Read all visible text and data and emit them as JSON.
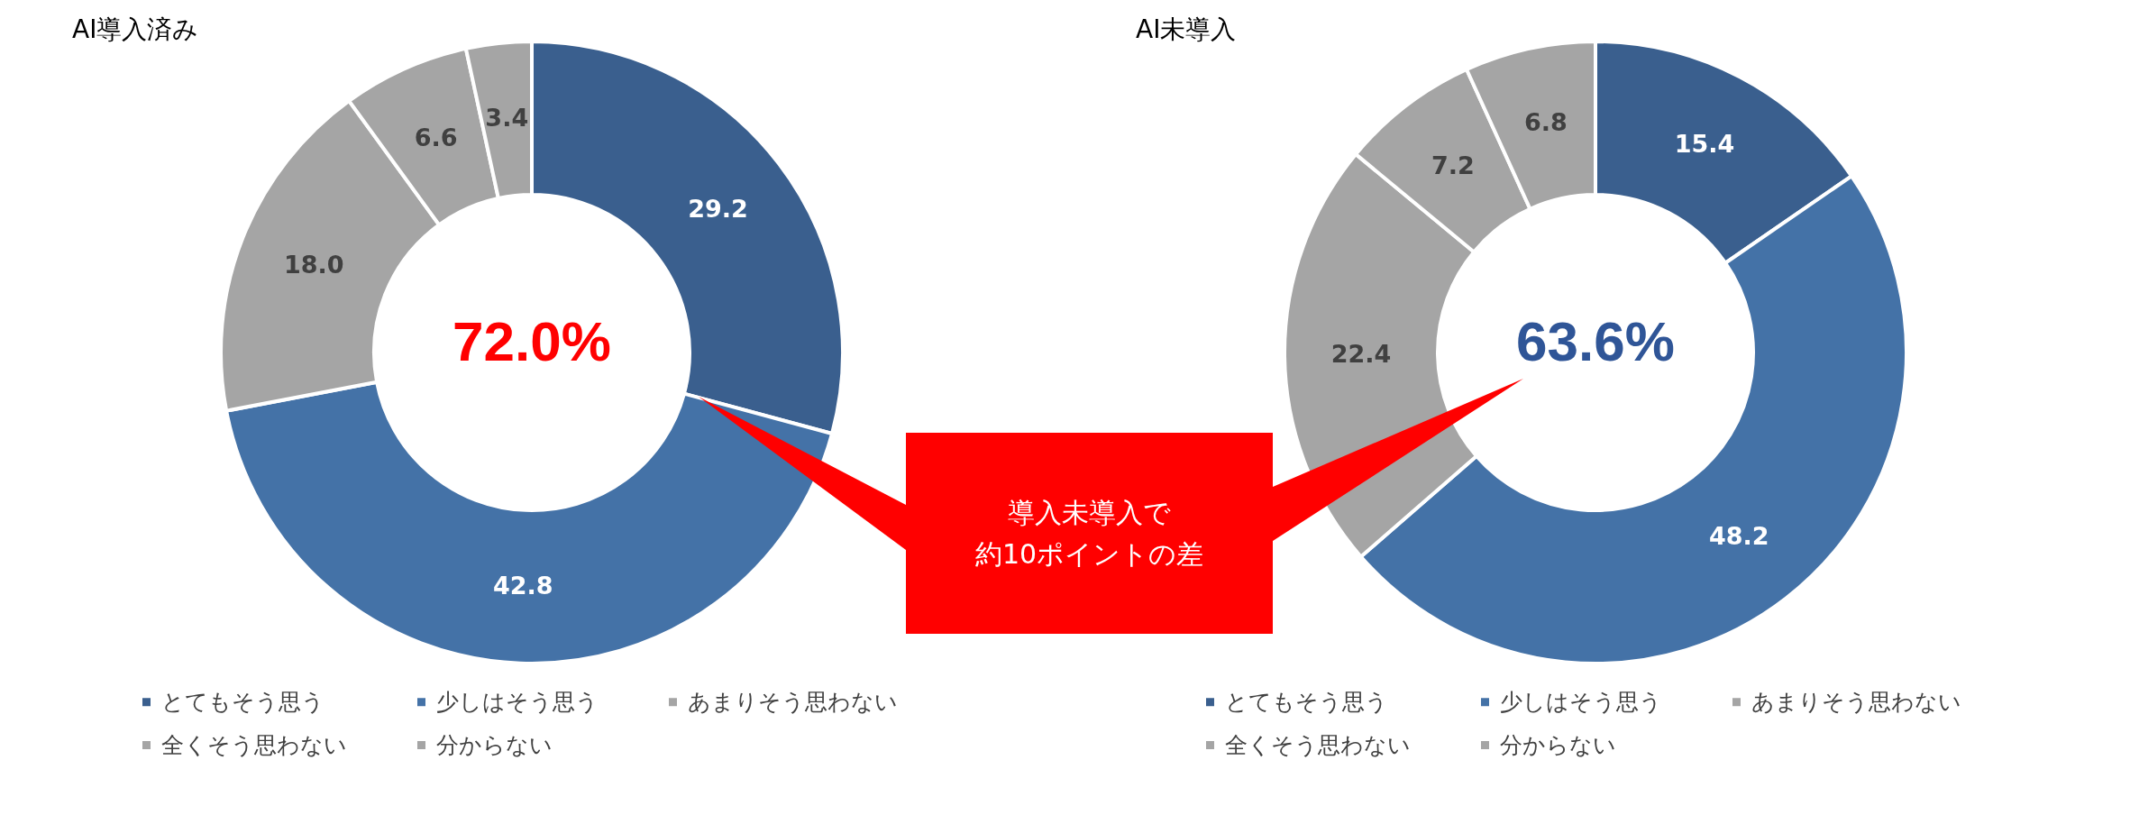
{
  "chart_data": [
    {
      "type": "donut",
      "title": "AI導入済み",
      "categories": [
        "とてもそう思う",
        "少しはそう思う",
        "あまりそう思わない",
        "全くそう思わない",
        "分からない"
      ],
      "values": [
        29.2,
        42.8,
        18.0,
        6.6,
        3.4
      ],
      "value_labels": [
        "29.2",
        "42.8",
        "18.0",
        "6.6",
        "3.4"
      ],
      "colors": [
        "#3a5f8e",
        "#4472a7",
        "#a5a5a5",
        "#a5a5a5",
        "#a5a5a5"
      ],
      "legend": "bottom",
      "annotations": [
        "72.0%",
        "導入未導入で",
        "約10ポイントの差"
      ]
    },
    {
      "type": "donut",
      "title": "AI未導入",
      "categories": [
        "とてもそう思う",
        "少しはそう思う",
        "あまりそう思わない",
        "全くそう思わない",
        "分からない"
      ],
      "values": [
        15.4,
        48.2,
        22.4,
        7.2,
        6.8
      ],
      "value_labels": [
        "15.4",
        "48.2",
        "22.4",
        "7.2",
        "6.8"
      ],
      "colors": [
        "#3a5f8e",
        "#4472a7",
        "#a5a5a5",
        "#a5a5a5",
        "#a5a5a5"
      ],
      "legend": "bottom",
      "annotations": [
        "63.6%"
      ]
    }
  ]
}
